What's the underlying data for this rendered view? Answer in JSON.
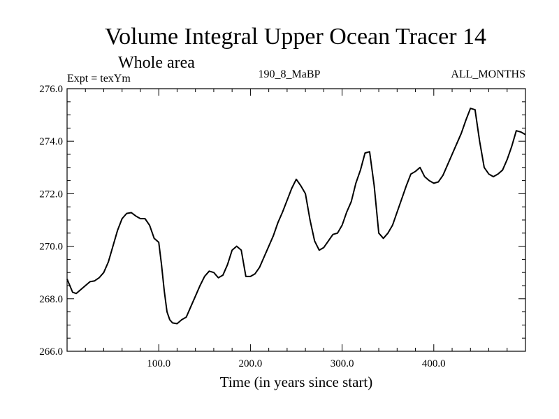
{
  "chart_data": {
    "type": "line",
    "title": "Volume Integral Upper Ocean Tracer 14",
    "subtitle": "Whole area",
    "annotations": {
      "left": "Expt = texYm",
      "center": "190_8_MaBP",
      "right": "ALL_MONTHS"
    },
    "xlabel": "Time (in years since start)",
    "ylabel": "",
    "xlim": [
      0,
      500
    ],
    "ylim": [
      266.0,
      276.0
    ],
    "x_ticks": [
      {
        "value": 100,
        "label": "100.0"
      },
      {
        "value": 200,
        "label": "200.0"
      },
      {
        "value": 300,
        "label": "300.0"
      },
      {
        "value": 400,
        "label": "400.0"
      }
    ],
    "y_ticks": [
      {
        "value": 266,
        "label": "266.0"
      },
      {
        "value": 268,
        "label": "268.0"
      },
      {
        "value": 270,
        "label": "270.0"
      },
      {
        "value": 272,
        "label": "272.0"
      },
      {
        "value": 274,
        "label": "274.0"
      },
      {
        "value": 276,
        "label": "276.0"
      }
    ],
    "x_minor_step": 20,
    "y_minor_step": 0.5,
    "grid": false,
    "series": [
      {
        "color": "#000000",
        "x": [
          0,
          3,
          6,
          10,
          15,
          20,
          25,
          30,
          35,
          40,
          45,
          50,
          55,
          60,
          65,
          70,
          75,
          80,
          85,
          90,
          95,
          100,
          103,
          106,
          109,
          112,
          115,
          120,
          125,
          130,
          135,
          140,
          145,
          150,
          155,
          160,
          165,
          170,
          175,
          180,
          185,
          190,
          195,
          200,
          205,
          210,
          215,
          220,
          225,
          230,
          235,
          240,
          245,
          250,
          255,
          260,
          265,
          270,
          275,
          280,
          285,
          290,
          295,
          300,
          305,
          310,
          315,
          320,
          325,
          330,
          335,
          340,
          345,
          350,
          355,
          360,
          365,
          370,
          375,
          380,
          385,
          390,
          395,
          400,
          405,
          410,
          415,
          420,
          425,
          430,
          435,
          440,
          445,
          450,
          455,
          460,
          465,
          470,
          475,
          480,
          485,
          490,
          495,
          500
        ],
        "y": [
          268.75,
          268.5,
          268.25,
          268.2,
          268.35,
          268.5,
          268.65,
          268.68,
          268.8,
          269.0,
          269.4,
          270.0,
          270.6,
          271.05,
          271.25,
          271.28,
          271.15,
          271.05,
          271.05,
          270.8,
          270.3,
          270.15,
          269.3,
          268.3,
          267.5,
          267.2,
          267.08,
          267.05,
          267.2,
          267.3,
          267.7,
          268.1,
          268.5,
          268.85,
          269.05,
          269.0,
          268.8,
          268.9,
          269.3,
          269.85,
          270.0,
          269.85,
          268.85,
          268.85,
          268.95,
          269.2,
          269.6,
          270.0,
          270.4,
          270.9,
          271.3,
          271.75,
          272.2,
          272.55,
          272.3,
          272.0,
          271.0,
          270.2,
          269.85,
          269.95,
          270.2,
          270.45,
          270.5,
          270.8,
          271.3,
          271.7,
          272.4,
          272.9,
          273.55,
          273.6,
          272.3,
          270.5,
          270.3,
          270.5,
          270.8,
          271.3,
          271.8,
          272.3,
          272.75,
          272.85,
          273.0,
          272.65,
          272.5,
          272.4,
          272.45,
          272.7,
          273.1,
          273.5,
          273.9,
          274.3,
          274.8,
          275.25,
          275.2,
          274.0,
          273.0,
          272.75,
          272.65,
          272.75,
          272.9,
          273.3,
          273.8,
          274.4,
          274.35,
          274.25
        ]
      }
    ]
  }
}
